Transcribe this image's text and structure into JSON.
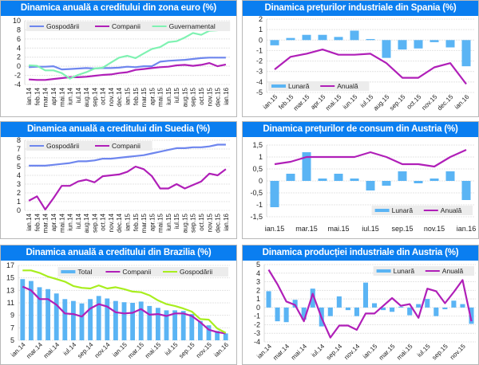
{
  "colors": {
    "header_bg": "#0a7ef0",
    "header_text": "#ffffff",
    "bar_blue": "#5ab4f4",
    "purple": "#b01fb8",
    "periwinkle": "#6e86ee",
    "mint": "#7ff2b2",
    "lime": "#a8ee1e",
    "grid": "#e4e4e4",
    "legend_bg": "#ececec"
  },
  "chart_data": [
    {
      "id": "euro",
      "type": "line",
      "title": "Dinamica anuală a creditului din zona euro (%)",
      "xlabel": "",
      "ylabel": "",
      "ylim": [
        -4,
        10
      ],
      "yticks": [
        -4,
        -2,
        0,
        2,
        4,
        6,
        8,
        10
      ],
      "ytick_labels": [
        "-4",
        "-2",
        "0",
        "2",
        "4",
        "6",
        "8",
        "10"
      ],
      "grid": true,
      "legend_position": "top-left",
      "label_rotation": "vertical",
      "categories": [
        "ian.14",
        "feb.14",
        "mar.14",
        "apr.14",
        "mai.14",
        "iun.14",
        "iul.14",
        "aug.14",
        "sep.14",
        "oct.14",
        "nov.14",
        "dec.14",
        "ian.15",
        "feb.15",
        "mar.15",
        "apr.15",
        "mai.15",
        "iun.15",
        "iul.15",
        "aug.15",
        "sep.15",
        "oct.15",
        "nov.15",
        "dec.15",
        "ian.16"
      ],
      "series": [
        {
          "name": "Gospodării",
          "kind": "line",
          "color": "#6e86ee",
          "values": [
            -0.2,
            -0.1,
            -0.1,
            0.0,
            -0.7,
            -0.6,
            -0.5,
            -0.4,
            -0.5,
            -0.4,
            -0.4,
            -0.3,
            -0.1,
            -0.2,
            0.0,
            0.0,
            1.0,
            1.2,
            1.3,
            1.4,
            1.6,
            1.8,
            1.9,
            1.9,
            1.9
          ]
        },
        {
          "name": "Companii",
          "kind": "line",
          "color": "#b01fb8",
          "values": [
            -2.9,
            -3.0,
            -3.0,
            -2.8,
            -2.6,
            -2.4,
            -2.4,
            -2.3,
            -2.1,
            -1.9,
            -1.8,
            -1.5,
            -1.3,
            -0.8,
            -0.6,
            -0.4,
            -0.2,
            -0.1,
            0.2,
            0.3,
            0.1,
            0.3,
            0.7,
            0.0,
            0.4
          ]
        },
        {
          "name": "Guvernamental",
          "kind": "line",
          "color": "#7ff2b2",
          "values": [
            0.2,
            0.1,
            -0.9,
            -0.9,
            -1.5,
            -2.7,
            -1.9,
            -1.3,
            -0.5,
            -0.3,
            0.8,
            1.9,
            2.3,
            1.8,
            2.8,
            3.8,
            4.2,
            5.3,
            5.5,
            6.3,
            7.3,
            6.9,
            7.8,
            7.9,
            8.6
          ]
        }
      ]
    },
    {
      "id": "spania",
      "type": "bar",
      "title": "Dinamica prețurilor industriale din Spania (%)",
      "xlabel": "",
      "ylabel": "",
      "ylim": [
        -5,
        2
      ],
      "yticks": [
        -5,
        -4,
        -3,
        -2,
        -1,
        0,
        1,
        2
      ],
      "ytick_labels": [
        "-5",
        "-4",
        "-3",
        "-2",
        "-1",
        "0",
        "1",
        "2"
      ],
      "grid": true,
      "legend_position": "bottom-left",
      "label_rotation": "diagonal",
      "categories": [
        "ian.15",
        "feb.15",
        "mar.15",
        "apr.15",
        "mai.15",
        "iun.15",
        "iul.15",
        "aug.15",
        "sep.15",
        "oct.15",
        "nov.15",
        "dec.15",
        "ian.16"
      ],
      "series": [
        {
          "name": "Lunară",
          "kind": "bar",
          "color": "#5ab4f4",
          "values": [
            -0.5,
            0.2,
            0.5,
            0.5,
            0.3,
            0.9,
            0.1,
            -1.7,
            -0.9,
            -0.8,
            -0.2,
            -0.7,
            -2.5
          ]
        },
        {
          "name": "Anuală",
          "kind": "line",
          "color": "#b01fb8",
          "values": [
            -2.8,
            -1.6,
            -1.3,
            -0.9,
            -1.4,
            -1.4,
            -1.3,
            -2.2,
            -3.6,
            -3.6,
            -2.6,
            -2.2,
            -4.2
          ]
        }
      ]
    },
    {
      "id": "suedia",
      "type": "line",
      "title": "Dinamica anuală a creditului din Suedia (%)",
      "xlabel": "",
      "ylabel": "",
      "ylim": [
        0,
        8
      ],
      "yticks": [
        0,
        1,
        2,
        3,
        4,
        5,
        6,
        7,
        8
      ],
      "ytick_labels": [
        "0",
        "1",
        "2",
        "3",
        "4",
        "5",
        "6",
        "7",
        "8"
      ],
      "grid": true,
      "legend_position": "top-left",
      "label_rotation": "vertical",
      "categories": [
        "ian.14",
        "feb.14",
        "mar.14",
        "apr.14",
        "mai.14",
        "iun.14",
        "iul.14",
        "aug.14",
        "sep.14",
        "oct.14",
        "nov.14",
        "dec.14",
        "ian.15",
        "feb.15",
        "mar.15",
        "apr.15",
        "mai.15",
        "iun.15",
        "iul.15",
        "aug.15",
        "sep.15",
        "oct.15",
        "nov.15",
        "dec.15",
        "ian.16"
      ],
      "series": [
        {
          "name": "Gospodării",
          "kind": "line",
          "color": "#6e86ee",
          "values": [
            5.1,
            5.1,
            5.1,
            5.2,
            5.3,
            5.4,
            5.6,
            5.6,
            5.7,
            5.9,
            5.9,
            6.0,
            6.1,
            6.2,
            6.3,
            6.5,
            6.7,
            6.9,
            7.1,
            7.1,
            7.2,
            7.2,
            7.3,
            7.5,
            7.5
          ]
        },
        {
          "name": "Companii",
          "kind": "line",
          "color": "#b01fb8",
          "values": [
            1.1,
            1.6,
            0.1,
            1.4,
            2.8,
            2.8,
            3.3,
            3.5,
            3.2,
            3.9,
            4.0,
            4.1,
            4.4,
            5.0,
            4.7,
            3.9,
            2.5,
            2.5,
            3.0,
            2.5,
            2.9,
            3.3,
            4.2,
            4.0,
            4.7
          ]
        }
      ]
    },
    {
      "id": "austria-cpi",
      "type": "bar",
      "title": "Dinamica prețurilor de consum din Austria (%)",
      "xlabel": "",
      "ylabel": "",
      "ylim": [
        -1.5,
        1.5
      ],
      "yticks": [
        -1.5,
        -1,
        -0.5,
        0,
        0.5,
        1,
        1.5
      ],
      "ytick_labels": [
        "-1,5",
        "-1",
        "-0,5",
        "0",
        "0,5",
        "1",
        "1,5"
      ],
      "grid": true,
      "legend_position": "bottom-right",
      "label_rotation": "horizontal",
      "categories": [
        "ian.15",
        "feb.15",
        "mar.15",
        "apr.15",
        "mai.15",
        "iun.15",
        "iul.15",
        "aug.15",
        "sep.15",
        "oct.15",
        "nov.15",
        "dec.15",
        "ian.16"
      ],
      "shown_labels": [
        "ian.15",
        "mar.15",
        "mai.15",
        "iul.15",
        "sep.15",
        "nov.15",
        "ian.16"
      ],
      "series": [
        {
          "name": "Lunară",
          "kind": "bar",
          "color": "#5ab4f4",
          "values": [
            -1.1,
            0.3,
            1.2,
            0.1,
            0.3,
            0.1,
            -0.4,
            -0.2,
            0.4,
            -0.1,
            0.1,
            0.4,
            -0.8
          ]
        },
        {
          "name": "Anuală",
          "kind": "line",
          "color": "#b01fb8",
          "values": [
            0.7,
            0.8,
            1.0,
            1.0,
            1.0,
            1.0,
            1.2,
            1.0,
            0.7,
            0.7,
            0.6,
            1.0,
            1.3
          ]
        }
      ]
    },
    {
      "id": "brazilia",
      "type": "bar",
      "title": "Dinamica anuală a creditului din Brazilia (%)",
      "xlabel": "",
      "ylabel": "",
      "ylim": [
        5,
        17
      ],
      "yticks": [
        5,
        7,
        9,
        11,
        13,
        15,
        17
      ],
      "ytick_labels": [
        "5",
        "7",
        "9",
        "11",
        "13",
        "15",
        "17"
      ],
      "grid": true,
      "legend_position": "top-right",
      "label_rotation": "diagonal",
      "categories": [
        "ian.14",
        "feb.14",
        "mar.14",
        "apr.14",
        "mai.14",
        "iun.14",
        "iul.14",
        "aug.14",
        "sep.14",
        "oct.14",
        "nov.14",
        "dec.14",
        "ian.15",
        "feb.15",
        "mar.15",
        "apr.15",
        "mai.15",
        "iun.15",
        "iul.15",
        "aug.15",
        "sep.15",
        "oct.15",
        "nov.15",
        "dec.15",
        "ian.16"
      ],
      "shown_labels": [
        "ian.14",
        "mar.14",
        "mai.14",
        "iul.14",
        "sep.14",
        "nov.14",
        "ian.15",
        "mar.15",
        "mai.15",
        "iul.15",
        "sep.15",
        "nov.15",
        "ian.16"
      ],
      "series": [
        {
          "name": "Total",
          "kind": "bar",
          "color": "#5ab4f4",
          "values": [
            14.8,
            14.5,
            13.5,
            13.2,
            12.5,
            11.6,
            11.3,
            10.9,
            11.6,
            12.1,
            11.7,
            11.3,
            11.1,
            11.0,
            11.2,
            10.5,
            10.2,
            9.8,
            9.8,
            9.7,
            9.2,
            8.1,
            7.4,
            6.5,
            6.1
          ]
        },
        {
          "name": "Companii",
          "kind": "line",
          "color": "#b01fb8",
          "values": [
            13.6,
            13.0,
            11.6,
            11.6,
            10.7,
            9.3,
            9.2,
            8.8,
            10.1,
            10.8,
            10.4,
            9.5,
            9.3,
            9.4,
            10.0,
            9.1,
            9.2,
            8.9,
            9.3,
            9.3,
            8.9,
            7.9,
            6.7,
            6.3,
            6.1
          ]
        },
        {
          "name": "Gospodării",
          "kind": "line",
          "color": "#a8ee1e",
          "values": [
            16.2,
            16.2,
            15.8,
            15.2,
            14.8,
            14.4,
            13.7,
            13.4,
            13.3,
            13.8,
            13.3,
            13.5,
            13.2,
            12.8,
            12.7,
            12.2,
            11.4,
            10.8,
            10.5,
            10.1,
            9.6,
            8.4,
            8.3,
            6.9,
            6.2
          ]
        }
      ]
    },
    {
      "id": "austria-ind",
      "type": "bar",
      "title": "Dinamica producției industriale din Austria (%)",
      "xlabel": "",
      "ylabel": "",
      "ylim": [
        -4,
        5
      ],
      "yticks": [
        -4,
        -3,
        -2,
        -1,
        0,
        1,
        2,
        3,
        4,
        5
      ],
      "ytick_labels": [
        "-4",
        "-3",
        "-2",
        "-1",
        "0",
        "1",
        "2",
        "3",
        "4",
        "5"
      ],
      "grid": true,
      "legend_position": "top-right",
      "label_rotation": "diagonal",
      "categories": [
        "ian.14",
        "feb.14",
        "mar.14",
        "apr.14",
        "mai.14",
        "iun.14",
        "iul.14",
        "aug.14",
        "sep.14",
        "oct.14",
        "nov.14",
        "dec.14",
        "ian.15",
        "feb.15",
        "mar.15",
        "apr.15",
        "mai.15",
        "iun.15",
        "iul.15",
        "aug.15",
        "sep.15",
        "oct.15",
        "nov.15",
        "dec.15"
      ],
      "shown_labels": [
        "ian.14",
        "mar.14",
        "mai.14",
        "iul.14",
        "sep.14",
        "nov.14",
        "ian.15",
        "mar.15",
        "mai.15",
        "iul.15",
        "sep.15",
        "nov.15"
      ],
      "series": [
        {
          "name": "Lunară",
          "kind": "bar",
          "color": "#5ab4f4",
          "values": [
            1.9,
            -1.6,
            -1.7,
            0.9,
            -1.4,
            2.2,
            -2.2,
            -1.0,
            1.3,
            -0.3,
            -1.0,
            2.9,
            0.5,
            -0.3,
            -0.5,
            0.1,
            -0.9,
            0.4,
            1.0,
            -1.0,
            -0.2,
            0.8,
            0.4,
            -1.9
          ]
        },
        {
          "name": "Anuală",
          "kind": "line",
          "color": "#b01fb8",
          "values": [
            4.4,
            2.7,
            0.7,
            0.3,
            -1.6,
            1.6,
            -1.2,
            -3.5,
            -2.1,
            -2.1,
            -2.6,
            -0.7,
            -0.7,
            0.2,
            1.1,
            0.2,
            0.4,
            -1.2,
            2.2,
            1.9,
            0.5,
            1.8,
            3.2,
            -1.6
          ]
        }
      ]
    }
  ]
}
